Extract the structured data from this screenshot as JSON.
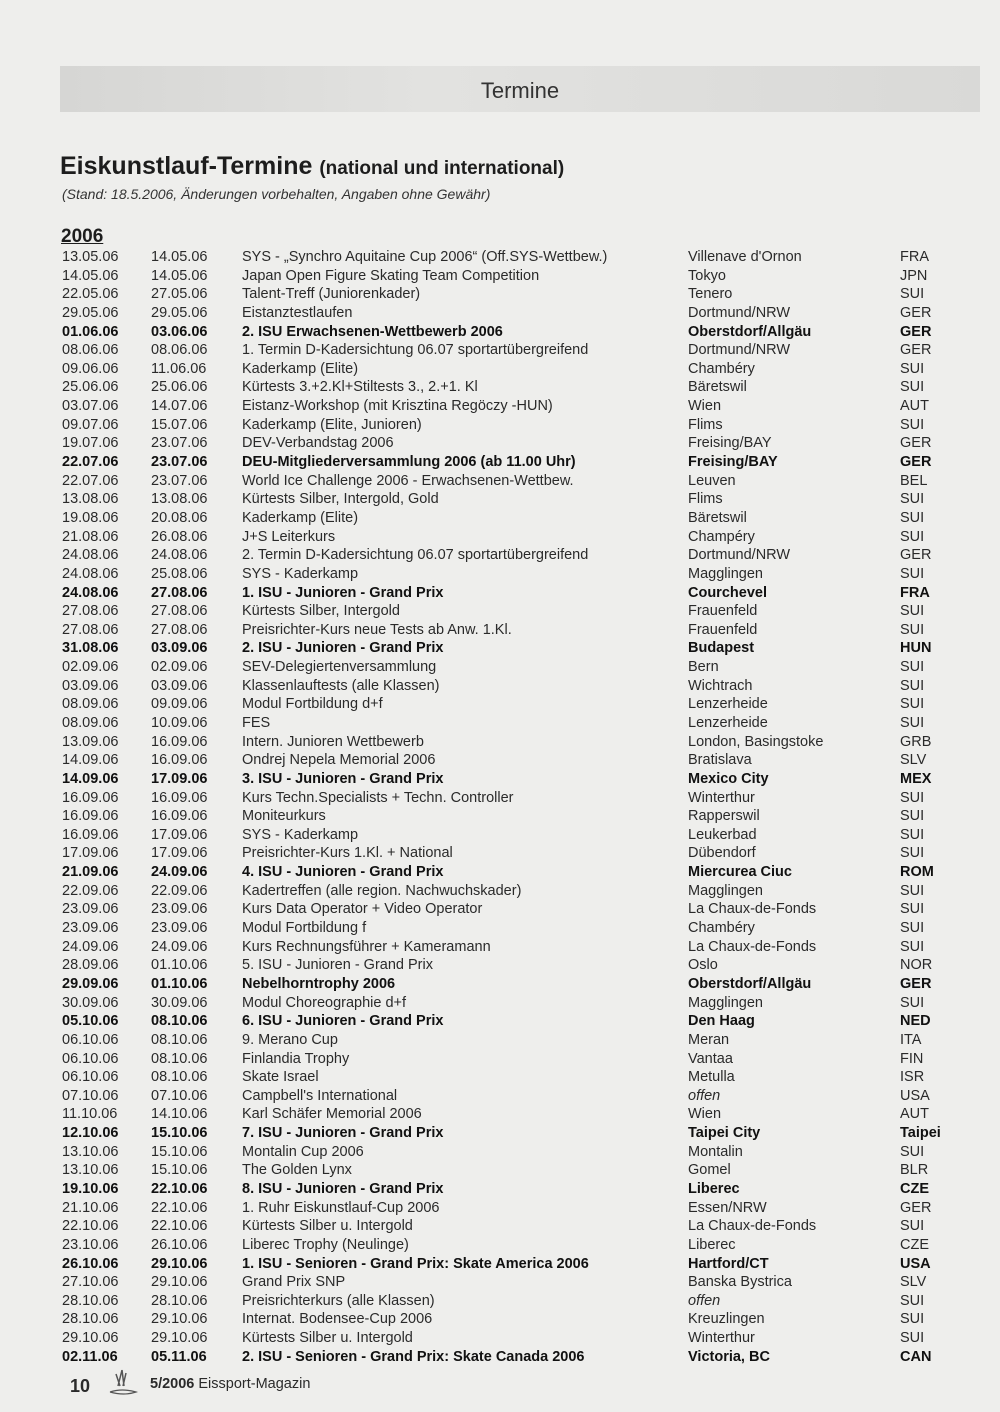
{
  "header": {
    "section": "Termine"
  },
  "title": {
    "main": "Eiskunstlauf-Termine",
    "sub": "(national und international)"
  },
  "stand": "(Stand: 18.5.2006, Änderungen vorbehalten, Angaben ohne Gewähr)",
  "year": "2006",
  "events": [
    {
      "from": "13.05.06",
      "to": "14.05.06",
      "event": "SYS - „Synchro Aquitaine Cup 2006“ (Off.SYS-Wettbew.)",
      "place": "Villenave d'Ornon",
      "country": "FRA",
      "bold": false
    },
    {
      "from": "14.05.06",
      "to": "14.05.06",
      "event": "Japan Open Figure Skating Team Competition",
      "place": "Tokyo",
      "country": "JPN",
      "bold": false
    },
    {
      "from": "22.05.06",
      "to": "27.05.06",
      "event": "Talent-Treff (Juniorenkader)",
      "place": "Tenero",
      "country": "SUI",
      "bold": false
    },
    {
      "from": "29.05.06",
      "to": "29.05.06",
      "event": "Eistanztestlaufen",
      "place": "Dortmund/NRW",
      "country": "GER",
      "bold": false
    },
    {
      "from": "01.06.06",
      "to": "03.06.06",
      "event": "2. ISU Erwachsenen-Wettbewerb 2006",
      "place": "Oberstdorf/Allgäu",
      "country": "GER",
      "bold": true
    },
    {
      "from": "08.06.06",
      "to": "08.06.06",
      "event": "1. Termin D-Kadersichtung 06.07 sportartübergreifend",
      "place": "Dortmund/NRW",
      "country": "GER",
      "bold": false
    },
    {
      "from": "09.06.06",
      "to": "11.06.06",
      "event": "Kaderkamp (Elite)",
      "place": "Chambéry",
      "country": "SUI",
      "bold": false
    },
    {
      "from": "25.06.06",
      "to": "25.06.06",
      "event": "Kürtests 3.+2.Kl+Stiltests 3., 2.+1. Kl",
      "place": "Bäretswil",
      "country": "SUI",
      "bold": false
    },
    {
      "from": "03.07.06",
      "to": "14.07.06",
      "event": "Eistanz-Workshop (mit Krisztina Regöczy -HUN)",
      "place": "Wien",
      "country": "AUT",
      "bold": false
    },
    {
      "from": "09.07.06",
      "to": "15.07.06",
      "event": "Kaderkamp (Elite, Junioren)",
      "place": "Flims",
      "country": "SUI",
      "bold": false
    },
    {
      "from": "19.07.06",
      "to": "23.07.06",
      "event": "DEV-Verbandstag 2006",
      "place": "Freising/BAY",
      "country": "GER",
      "bold": false
    },
    {
      "from": "22.07.06",
      "to": "23.07.06",
      "event": "DEU-Mitgliederversammlung 2006 (ab 11.00 Uhr)",
      "place": "Freising/BAY",
      "country": "GER",
      "bold": true
    },
    {
      "from": "22.07.06",
      "to": "23.07.06",
      "event": "World Ice Challenge 2006 - Erwachsenen-Wettbew.",
      "place": "Leuven",
      "country": "BEL",
      "bold": false
    },
    {
      "from": "13.08.06",
      "to": "13.08.06",
      "event": "Kürtests Silber, Intergold, Gold",
      "place": "Flims",
      "country": "SUI",
      "bold": false
    },
    {
      "from": "19.08.06",
      "to": "20.08.06",
      "event": "Kaderkamp (Elite)",
      "place": "Bäretswil",
      "country": "SUI",
      "bold": false
    },
    {
      "from": "21.08.06",
      "to": "26.08.06",
      "event": "J+S Leiterkurs",
      "place": "Champéry",
      "country": "SUI",
      "bold": false
    },
    {
      "from": "24.08.06",
      "to": "24.08.06",
      "event": "2. Termin D-Kadersichtung 06.07 sportartübergreifend",
      "place": "Dortmund/NRW",
      "country": "GER",
      "bold": false
    },
    {
      "from": "24.08.06",
      "to": "25.08.06",
      "event": "SYS - Kaderkamp",
      "place": "Magglingen",
      "country": "SUI",
      "bold": false
    },
    {
      "from": "24.08.06",
      "to": "27.08.06",
      "event": "1. ISU - Junioren - Grand Prix",
      "place": "Courchevel",
      "country": "FRA",
      "bold": true
    },
    {
      "from": "27.08.06",
      "to": "27.08.06",
      "event": "Kürtests Silber, Intergold",
      "place": "Frauenfeld",
      "country": "SUI",
      "bold": false
    },
    {
      "from": "27.08.06",
      "to": "27.08.06",
      "event": "Preisrichter-Kurs neue Tests ab Anw. 1.Kl.",
      "place": "Frauenfeld",
      "country": "SUI",
      "bold": false
    },
    {
      "from": "31.08.06",
      "to": "03.09.06",
      "event": "2. ISU - Junioren - Grand Prix",
      "place": "Budapest",
      "country": "HUN",
      "bold": true
    },
    {
      "from": "02.09.06",
      "to": "02.09.06",
      "event": "SEV-Delegiertenversammlung",
      "place": "Bern",
      "country": "SUI",
      "bold": false
    },
    {
      "from": "03.09.06",
      "to": "03.09.06",
      "event": "Klassenlauftests (alle Klassen)",
      "place": "Wichtrach",
      "country": "SUI",
      "bold": false
    },
    {
      "from": "08.09.06",
      "to": "09.09.06",
      "event": "Modul Fortbildung d+f",
      "place": "Lenzerheide",
      "country": "SUI",
      "bold": false
    },
    {
      "from": "08.09.06",
      "to": "10.09.06",
      "event": "FES",
      "place": "Lenzerheide",
      "country": "SUI",
      "bold": false
    },
    {
      "from": "13.09.06",
      "to": "16.09.06",
      "event": "Intern. Junioren Wettbewerb",
      "place": "London, Basingstoke",
      "country": "GRB",
      "bold": false
    },
    {
      "from": "14.09.06",
      "to": "16.09.06",
      "event": "Ondrej Nepela Memorial 2006",
      "place": "Bratislava",
      "country": "SLV",
      "bold": false
    },
    {
      "from": "14.09.06",
      "to": "17.09.06",
      "event": "3. ISU - Junioren - Grand Prix",
      "place": "Mexico City",
      "country": "MEX",
      "bold": true
    },
    {
      "from": "16.09.06",
      "to": "16.09.06",
      "event": "Kurs Techn.Specialists + Techn. Controller",
      "place": "Winterthur",
      "country": "SUI",
      "bold": false
    },
    {
      "from": "16.09.06",
      "to": "16.09.06",
      "event": "Moniteurkurs",
      "place": "Rapperswil",
      "country": "SUI",
      "bold": false
    },
    {
      "from": "16.09.06",
      "to": "17.09.06",
      "event": "SYS - Kaderkamp",
      "place": "Leukerbad",
      "country": "SUI",
      "bold": false
    },
    {
      "from": "17.09.06",
      "to": "17.09.06",
      "event": "Preisrichter-Kurs 1.Kl. + National",
      "place": "Dübendorf",
      "country": "SUI",
      "bold": false
    },
    {
      "from": "21.09.06",
      "to": "24.09.06",
      "event": "4. ISU - Junioren - Grand Prix",
      "place": "Miercurea Ciuc",
      "country": "ROM",
      "bold": true
    },
    {
      "from": "22.09.06",
      "to": "22.09.06",
      "event": "Kadertreffen (alle region. Nachwuchskader)",
      "place": "Magglingen",
      "country": "SUI",
      "bold": false
    },
    {
      "from": "23.09.06",
      "to": "23.09.06",
      "event": "Kurs Data Operator + Video Operator",
      "place": "La Chaux-de-Fonds",
      "country": "SUI",
      "bold": false
    },
    {
      "from": "23.09.06",
      "to": "23.09.06",
      "event": "Modul Fortbildung f",
      "place": "Chambéry",
      "country": "SUI",
      "bold": false
    },
    {
      "from": "24.09.06",
      "to": "24.09.06",
      "event": "Kurs Rechnungsführer + Kameramann",
      "place": "La Chaux-de-Fonds",
      "country": "SUI",
      "bold": false
    },
    {
      "from": "28.09.06",
      "to": "01.10.06",
      "event": "5. ISU - Junioren - Grand Prix",
      "place": "Oslo",
      "country": "NOR",
      "bold": false
    },
    {
      "from": "29.09.06",
      "to": "01.10.06",
      "event": "Nebelhorntrophy 2006",
      "place": "Oberstdorf/Allgäu",
      "country": "GER",
      "bold": true
    },
    {
      "from": "30.09.06",
      "to": "30.09.06",
      "event": "Modul Choreographie d+f",
      "place": "Magglingen",
      "country": "SUI",
      "bold": false
    },
    {
      "from": "05.10.06",
      "to": "08.10.06",
      "event": "6. ISU - Junioren - Grand Prix",
      "place": "Den Haag",
      "country": "NED",
      "bold": true
    },
    {
      "from": "06.10.06",
      "to": "08.10.06",
      "event": "9. Merano Cup",
      "place": "Meran",
      "country": "ITA",
      "bold": false
    },
    {
      "from": "06.10.06",
      "to": "08.10.06",
      "event": "Finlandia Trophy",
      "place": "Vantaa",
      "country": "FIN",
      "bold": false
    },
    {
      "from": "06.10.06",
      "to": "08.10.06",
      "event": "Skate Israel",
      "place": "Metulla",
      "country": "ISR",
      "bold": false
    },
    {
      "from": "07.10.06",
      "to": "07.10.06",
      "event": "Campbell's International",
      "place": "offen",
      "country": "USA",
      "bold": false,
      "place_italic": true
    },
    {
      "from": "11.10.06",
      "to": "14.10.06",
      "event": "Karl Schäfer Memorial 2006",
      "place": "Wien",
      "country": "AUT",
      "bold": false
    },
    {
      "from": "12.10.06",
      "to": "15.10.06",
      "event": "7. ISU - Junioren - Grand Prix",
      "place": "Taipei City",
      "country": "Taipei",
      "bold": true
    },
    {
      "from": "13.10.06",
      "to": "15.10.06",
      "event": "Montalin Cup 2006",
      "place": "Montalin",
      "country": "SUI",
      "bold": false
    },
    {
      "from": "13.10.06",
      "to": "15.10.06",
      "event": "The Golden Lynx",
      "place": "Gomel",
      "country": "BLR",
      "bold": false
    },
    {
      "from": "19.10.06",
      "to": "22.10.06",
      "event": "8. ISU - Junioren - Grand Prix",
      "place": "Liberec",
      "country": "CZE",
      "bold": true
    },
    {
      "from": "21.10.06",
      "to": "22.10.06",
      "event": "1. Ruhr Eiskunstlauf-Cup 2006",
      "place": "Essen/NRW",
      "country": "GER",
      "bold": false
    },
    {
      "from": "22.10.06",
      "to": "22.10.06",
      "event": "Kürtests Silber u. Intergold",
      "place": "La Chaux-de-Fonds",
      "country": "SUI",
      "bold": false
    },
    {
      "from": "23.10.06",
      "to": "26.10.06",
      "event": "Liberec Trophy (Neulinge)",
      "place": "Liberec",
      "country": "CZE",
      "bold": false
    },
    {
      "from": "26.10.06",
      "to": "29.10.06",
      "event": "1. ISU - Senioren - Grand Prix: Skate America 2006",
      "place": "Hartford/CT",
      "country": "USA",
      "bold": true
    },
    {
      "from": "27.10.06",
      "to": "29.10.06",
      "event": "Grand Prix SNP",
      "place": "Banska Bystrica",
      "country": "SLV",
      "bold": false
    },
    {
      "from": "28.10.06",
      "to": "28.10.06",
      "event": "Preisrichterkurs (alle Klassen)",
      "place": "offen",
      "country": "SUI",
      "bold": false,
      "place_italic": true
    },
    {
      "from": "28.10.06",
      "to": "29.10.06",
      "event": "Internat. Bodensee-Cup 2006",
      "place": "Kreuzlingen",
      "country": "SUI",
      "bold": false
    },
    {
      "from": "29.10.06",
      "to": "29.10.06",
      "event": "Kürtests Silber u. Intergold",
      "place": "Winterthur",
      "country": "SUI",
      "bold": false
    },
    {
      "from": "02.11.06",
      "to": "05.11.06",
      "event": "2. ISU - Senioren - Grand Prix: Skate Canada 2006",
      "place": "Victoria, BC",
      "country": "CAN",
      "bold": true
    }
  ],
  "footer": {
    "page": "10",
    "issue": "5/2006",
    "magazine": "Eissport-Magazin",
    "logo_icon": "skater-logo-icon"
  }
}
